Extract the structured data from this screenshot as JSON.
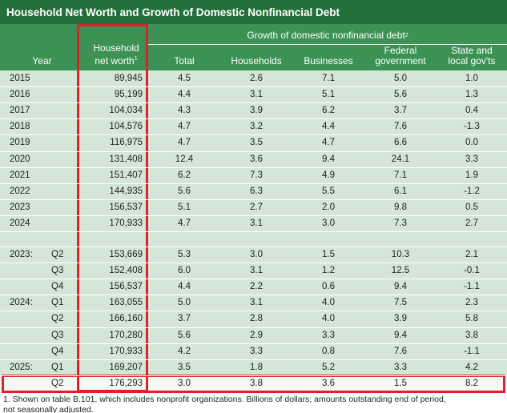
{
  "header": {
    "title": "Household Net Worth and Growth of Domestic Nonfinancial Debt",
    "group": "Growth of domestic nonfinancial debt",
    "group_note": "2",
    "year": "Year",
    "net_worth": "Household net worth",
    "net_worth_note": "1",
    "columns": [
      "Total",
      "Households",
      "Businesses",
      "Federal government",
      "State and local gov'ts"
    ]
  },
  "table": {
    "annual": [
      [
        "2015",
        "89,945",
        "4.5",
        "2.6",
        "7.1",
        "5.0",
        "1.0"
      ],
      [
        "2016",
        "95,199",
        "4.4",
        "3.1",
        "5.1",
        "5.6",
        "1.3"
      ],
      [
        "2017",
        "104,034",
        "4.3",
        "3.9",
        "6.2",
        "3.7",
        "0.4"
      ],
      [
        "2018",
        "104,576",
        "4.7",
        "3.2",
        "4.4",
        "7.6",
        "-1.3"
      ],
      [
        "2019",
        "116,975",
        "4.7",
        "3.5",
        "4.7",
        "6.6",
        "0.0"
      ],
      [
        "2020",
        "131,408",
        "12.4",
        "3.6",
        "9.4",
        "24.1",
        "3.3"
      ],
      [
        "2021",
        "151,407",
        "6.2",
        "7.3",
        "4.9",
        "7.1",
        "1.9"
      ],
      [
        "2022",
        "144,935",
        "5.6",
        "6.3",
        "5.5",
        "6.1",
        "-1.2"
      ],
      [
        "2023",
        "156,537",
        "5.1",
        "2.7",
        "2.0",
        "9.8",
        "0.5"
      ],
      [
        "2024",
        "170,933",
        "4.7",
        "3.1",
        "3.0",
        "7.3",
        "2.7"
      ]
    ],
    "quarterly": [
      [
        "2023:",
        "Q2",
        "153,669",
        "5.3",
        "3.0",
        "1.5",
        "10.3",
        "2.1"
      ],
      [
        null,
        "Q3",
        "152,408",
        "6.0",
        "3.1",
        "1.2",
        "12.5",
        "-0.1"
      ],
      [
        null,
        "Q4",
        "156,537",
        "4.4",
        "2.2",
        "0.6",
        "9.4",
        "-1.1"
      ],
      [
        "2024:",
        "Q1",
        "163,055",
        "5.0",
        "3.1",
        "4.0",
        "7.5",
        "2.3"
      ],
      [
        null,
        "Q2",
        "166,160",
        "3.7",
        "2.8",
        "4.0",
        "3.9",
        "5.8"
      ],
      [
        null,
        "Q3",
        "170,280",
        "5.6",
        "2.9",
        "3.3",
        "9.4",
        "3.8"
      ],
      [
        null,
        "Q4",
        "170,933",
        "4.2",
        "3.3",
        "0.8",
        "7.6",
        "-1.1"
      ],
      [
        "2025:",
        "Q1",
        "169,207",
        "3.5",
        "1.8",
        "5.2",
        "3.3",
        "4.2"
      ],
      [
        null,
        "Q2",
        "176,293",
        "3.0",
        "3.8",
        "3.6",
        "1.5",
        "8.2"
      ]
    ]
  },
  "footnote": "1. Shown on table B.101, which includes nonprofit organizations. Billions of dollars; amounts outstanding end of period, not seasonally adjusted."
}
